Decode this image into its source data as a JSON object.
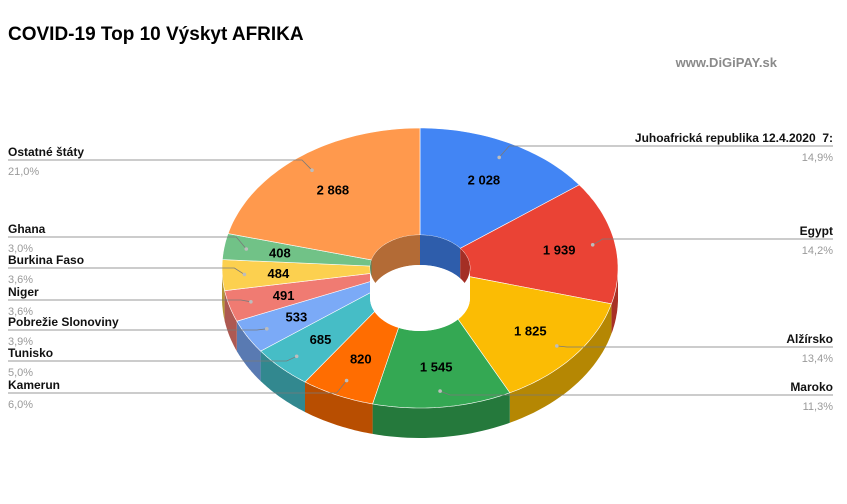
{
  "title": "COVID-19 Top 10 Výskyt AFRIKA",
  "watermark": "www.DiGiPAY.sk",
  "chart_data": {
    "type": "pie",
    "variant": "3d-donut",
    "title": "COVID-19 Top 10 Výskyt AFRIKA",
    "series": [
      {
        "name": "Juhoafrická republika 12.4.2020  7:",
        "value": 2028,
        "value_label": "2 028",
        "percent_label": "14,9%",
        "color": "#4285f4"
      },
      {
        "name": "Egypt",
        "value": 1939,
        "value_label": "1 939",
        "percent_label": "14,2%",
        "color": "#ea4335"
      },
      {
        "name": "Alžírsko",
        "value": 1825,
        "value_label": "1 825",
        "percent_label": "13,4%",
        "color": "#fbbc04"
      },
      {
        "name": "Maroko",
        "value": 1545,
        "value_label": "1 545",
        "percent_label": "11,3%",
        "color": "#34a853"
      },
      {
        "name": "Kamerun",
        "value": 820,
        "value_label": "820",
        "percent_label": "6,0%",
        "color": "#ff6d01"
      },
      {
        "name": "Tunisko",
        "value": 685,
        "value_label": "685",
        "percent_label": "5,0%",
        "color": "#46bdc6"
      },
      {
        "name": "Pobrežie Slonoviny",
        "value": 533,
        "value_label": "533",
        "percent_label": "3,9%",
        "color": "#7baaf7"
      },
      {
        "name": "Niger",
        "value": 491,
        "value_label": "491",
        "percent_label": "3,6%",
        "color": "#f07b72"
      },
      {
        "name": "Burkina Faso",
        "value": 484,
        "value_label": "484",
        "percent_label": "3,6%",
        "color": "#fcd04f"
      },
      {
        "name": "Ghana",
        "value": 408,
        "value_label": "408",
        "percent_label": "3,0%",
        "color": "#71c287"
      },
      {
        "name": "Ostatné štáty",
        "value": 2868,
        "value_label": "2 868",
        "percent_label": "21,0%",
        "color": "#ff994d"
      }
    ],
    "legend_position": "labels around the chart"
  }
}
